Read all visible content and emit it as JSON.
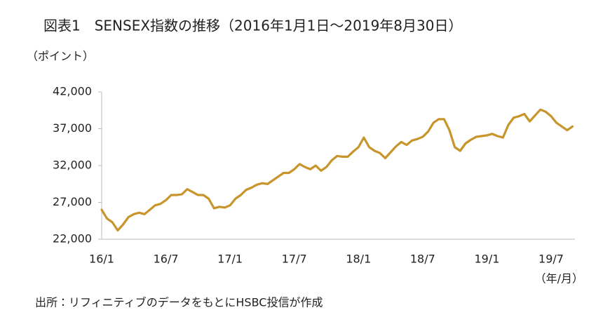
{
  "chart_data": {
    "type": "line",
    "title": "図表1　SENSEX指数の推移（2016年1月1日～2019年8月30日）",
    "y_label": "（ポイント）",
    "x_label": "（年/月）",
    "source": "出所：リフィニティブのデータをもとにHSBC投信が作成",
    "color": "#c8952c",
    "categories": [
      "16/1",
      null,
      null,
      null,
      null,
      null,
      null,
      null,
      null,
      null,
      null,
      null,
      "16/7",
      null,
      null,
      null,
      null,
      null,
      null,
      null,
      null,
      null,
      null,
      null,
      "17/1",
      null,
      null,
      null,
      null,
      null,
      null,
      null,
      null,
      null,
      null,
      null,
      "17/7",
      null,
      null,
      null,
      null,
      null,
      null,
      null,
      null,
      null,
      null,
      null,
      "18/1",
      null,
      null,
      null,
      null,
      null,
      null,
      null,
      null,
      null,
      null,
      null,
      "18/7",
      null,
      null,
      null,
      null,
      null,
      null,
      null,
      null,
      null,
      null,
      null,
      "19/1",
      null,
      null,
      null,
      null,
      null,
      null,
      null,
      null,
      null,
      null,
      null,
      "19/7",
      null,
      null,
      null,
      null
    ],
    "values": [
      26000,
      24800,
      24300,
      23200,
      24000,
      25000,
      25400,
      25600,
      25400,
      26000,
      26600,
      26800,
      27300,
      28000,
      28000,
      28100,
      28800,
      28400,
      28000,
      28000,
      27500,
      26200,
      26400,
      26300,
      26600,
      27500,
      28000,
      28700,
      29000,
      29400,
      29600,
      29500,
      30000,
      30500,
      31000,
      31000,
      31500,
      32200,
      31800,
      31500,
      32000,
      31300,
      31800,
      32700,
      33300,
      33200,
      33200,
      33900,
      34500,
      35800,
      34500,
      34000,
      33700,
      33000,
      33800,
      34600,
      35200,
      34800,
      35400,
      35600,
      35900,
      36600,
      37800,
      38300,
      38300,
      36800,
      34500,
      34000,
      35000,
      35500,
      35900,
      36000,
      36100,
      36300,
      36000,
      35800,
      37500,
      38500,
      38700,
      39000,
      38000,
      38800,
      39600,
      39300,
      38700,
      37800,
      37300,
      36800,
      37300
    ],
    "ylim": [
      22000,
      42000
    ],
    "yticks": [
      {
        "value": 22000,
        "label": "22,000"
      },
      {
        "value": 27000,
        "label": "27,000"
      },
      {
        "value": 32000,
        "label": "32,000"
      },
      {
        "value": 37000,
        "label": "37,000"
      },
      {
        "value": 42000,
        "label": "42,000"
      }
    ]
  }
}
